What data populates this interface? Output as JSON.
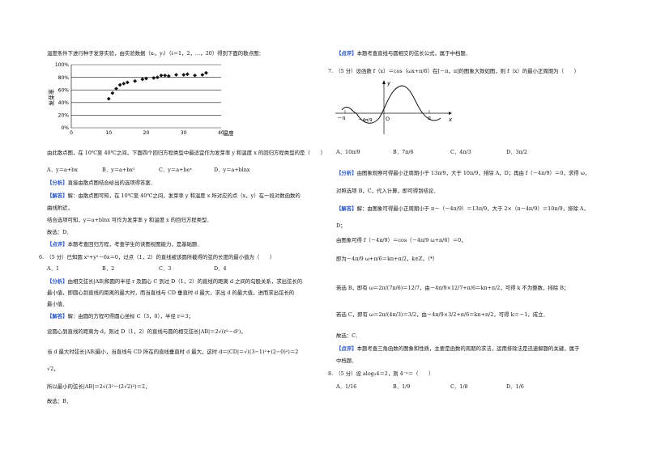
{
  "left": {
    "intro": "温度条件下进行种子发芽实验，由实验数据（xᵢ，yᵢ）（i＝1，2，…，20）得到下面的散点图：",
    "chart_data": {
      "type": "scatter",
      "xlabel": "温度/℃",
      "ylabel": "发芽率",
      "x_ticks": [
        "0",
        "10",
        "20",
        "30",
        "40"
      ],
      "y_ticks": [
        "0%",
        "20%",
        "40%",
        "60%",
        "80%",
        "100%"
      ],
      "xlim": [
        0,
        40
      ],
      "ylim": [
        0,
        100
      ],
      "points": [
        [
          10,
          46
        ],
        [
          11,
          55
        ],
        [
          12,
          62
        ],
        [
          13,
          68
        ],
        [
          14,
          70
        ],
        [
          15,
          72
        ],
        [
          17,
          74
        ],
        [
          19,
          77
        ],
        [
          20,
          78
        ],
        [
          22,
          79
        ],
        [
          23,
          80
        ],
        [
          24,
          83
        ],
        [
          25,
          83
        ],
        [
          26,
          82
        ],
        [
          28,
          84
        ],
        [
          30,
          84
        ],
        [
          31,
          85
        ],
        [
          33,
          83
        ],
        [
          35,
          84
        ],
        [
          36,
          87
        ]
      ]
    },
    "q5_text": "由此散点图，在 10℃至 40℃之间，下面四个回归方程类型中最适宜作为发芽率 y 和温度 x 的回归方程类型的是（　　）",
    "q5_options": [
      "A．y＝a+bx",
      "B．y＝a+bx²",
      "C．y＝a+beˣ",
      "D．y＝a+blnx"
    ],
    "q5_fenxi_tag": "【分析】",
    "q5_fenxi": "直接由散点图结合给出的选项得答案．",
    "q5_jieda_tag": "【解答】",
    "q5_jieda_1": "解：由散点图可知，在 10℃至 40℃之间，发芽率 y 和温度 x 所对应的点（x，y）在一段对数函数的",
    "q5_jieda_2": "曲线附近，",
    "q5_jieda_3": "结合选项可知，y＝a+blnx 可作为发芽率 y 和温度 x 的回归方程类型．",
    "q5_answer": "故选：D．",
    "q5_dianping_tag": "【点评】",
    "q5_dianping": "本题考查回归方程，考查学生的读图视图能力，是基础题．",
    "q6_text": "6.　（5 分）已知圆 x²+y²－6x＝0，过点（1，2）的直线被该圆所截得的弦的长度的最小值为（　　）",
    "q6_options": [
      "A．1",
      "B．2",
      "C．3",
      "D．4"
    ],
    "q6_fenxi_tag": "【分析】",
    "q6_fenxi_1": "由相交弦长|AB|和圆的半径 r 及圆心 C 到过 D（1，2）的直线的距离 d 之间的勾股关系，求出弦长的",
    "q6_fenxi_2": "最小值，即圆心到直线的距离的最大时，而当直线与 CD 垂直时 d 最大，求出 d 的最大值，进而求出弦长的",
    "q6_fenxi_3": "最小值．",
    "q6_jieda_tag": "【解答】",
    "q6_jieda_1": "解：由圆的方程可得圆心坐标 C（3，0），半径 r＝3；",
    "q6_jieda_2": "设圆心到直线的距离为 d，则过 D（1，2）的直线与圆的相交弦长|AB|＝2√(r²－d²)，",
    "q6_jieda_3": "当 d 最大时弦长|AB|最小，当直线与 CD 所在的直线垂直时 d 最大，这时 d＝|CD|＝√((3−1)²+(2−0)²)＝2",
    "q6_jieda_4": "√2，",
    "q6_jieda_5": "所以最小的弦长|AB|＝2√(3²－(2√2)²)＝2，",
    "q6_answer": "故选：B．"
  },
  "right": {
    "q6_dianping_tag": "【点评】",
    "q6_dianping": "本题考查直线与圆相交的弦长公式，属于中档题．",
    "q7_text": "7.　（5 分）设函数 f（x）＝cos（ωx+π/6）在[－π，π]的图象大致如图，则 f（x）的最小正周期为（　　）",
    "graph_labels": {
      "y": "y",
      "x": "x",
      "o": "O",
      "minus_pi": "－π",
      "pi": "π",
      "mark": "－4π/9"
    },
    "q7_options": [
      "A．10π/9",
      "B．7π/6",
      "C．4π/3",
      "D．3π/2"
    ],
    "q7_fenxi_tag": "【分析】",
    "q7_fenxi_1": "由图象观察可得最小正周期小于 13π/9，大于 10π/9，排除 A，D；再由 f（－4π/9）＝0，求得 ω，",
    "q7_fenxi_2": "对照选项 B，C，代入计算，即可得到结论．",
    "q7_jieda_tag": "【解答】",
    "q7_jieda_1": "解：由图象可得最小正周期小于 π－（－4π/9）＝13π/9，大于 2×（π－4π/9）＝10π/9，排除 A，",
    "q7_jieda_2": "D；",
    "q7_jieda_3": "由图象可得 f（－4π/9）＝cos（－4π/9 ω+π/6）＝0，",
    "q7_jieda_4": "即为－4π/9 ω+π/6＝kπ+π/2，k∈Z，（*）",
    "q7_jieda_5": "若选 B，即有 ω＝2π/(7π/6)＝12/7，由－4π/9×12/7+π/6＝kπ+π/2，可得 k 不为整数，排除 B；",
    "q7_jieda_6": "若选 C，即有 ω＝2π/(4π/3)＝3/2，由－4π/9×3/2+π/6＝kπ+π/2，可得 k＝－1，成立．",
    "q7_answer": "故选：C．",
    "q7_dianping_tag": "【点评】",
    "q7_dianping_1": "本题考查三角函数的图象和性质，主要是函数的周期的求法，运用排除法是迅速解题的关键，属于",
    "q7_dianping_2": "中档题．",
    "q8_text": "8.　（5 分）设 alog₃4＝2，则 4⁻ᵃ＝（　　）",
    "q8_options": [
      "A．1/16",
      "B．1/9",
      "C．1/8",
      "D．1/6"
    ]
  }
}
